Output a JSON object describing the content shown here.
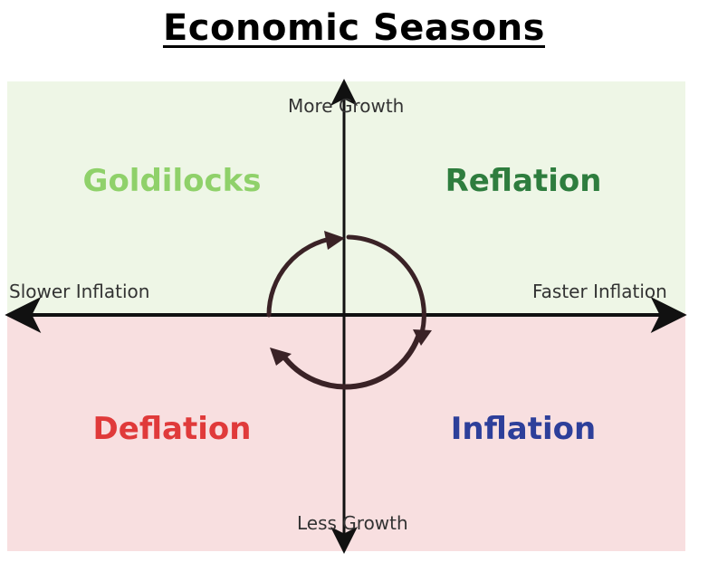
{
  "title": "Economic Seasons",
  "axes": {
    "top": "More Growth",
    "bottom": "Less Growth",
    "left": "Slower Inflation",
    "right": "Faster Inflation"
  },
  "quadrants": {
    "top_left": {
      "label": "Goldilocks",
      "color": "#8fd16a"
    },
    "top_right": {
      "label": "Reflation",
      "color": "#2e7d3e"
    },
    "bottom_left": {
      "label": "Deflation",
      "color": "#e03a3a"
    },
    "bottom_right": {
      "label": "Inflation",
      "color": "#2d3f9a"
    }
  },
  "colors": {
    "growth_background": "#eef6e6",
    "contraction_background": "#f8dfe0",
    "axis": "#111111",
    "cycle_arrow": "#3a2226"
  }
}
